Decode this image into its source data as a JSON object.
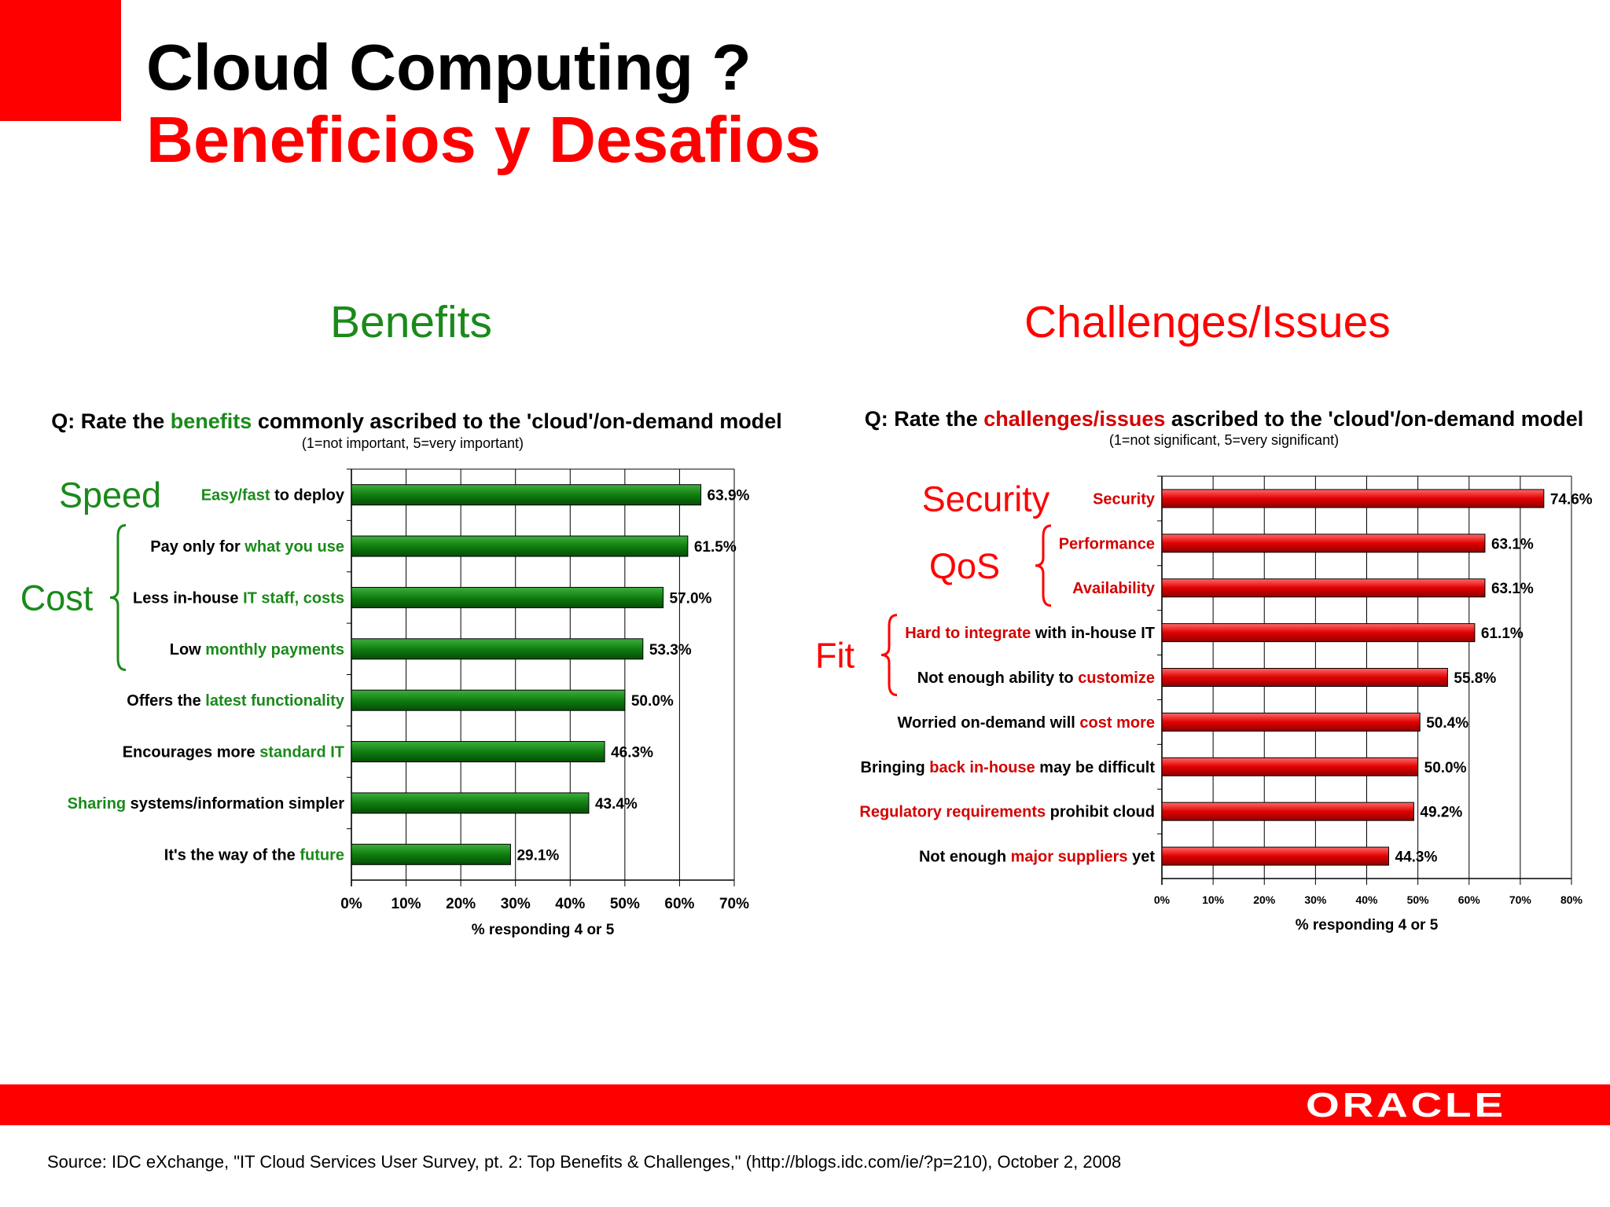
{
  "slide": {
    "title": "Cloud Computing ?",
    "subtitle": "Beneficios y Desafios",
    "benefits_heading": "Benefits",
    "challenges_heading": "Challenges/Issues",
    "source": "Source: IDC eXchange, \"IT Cloud Services User Survey, pt. 2: Top Benefits & Challenges,\" (http://blogs.idc.com/ie/?p=210), October 2, 2008",
    "logo_text": "ORACLE",
    "colors": {
      "accent": "#ff0000",
      "benefit_green": "#1a8a1a",
      "bar_green": "#0f7f0f",
      "bar_red": "#e00000"
    }
  },
  "chart_data": [
    {
      "type": "bar",
      "orientation": "horizontal",
      "question": [
        {
          "text": "Q: Rate the ",
          "hl": false
        },
        {
          "text": "benefits",
          "hl": true
        },
        {
          "text": " commonly ascribed to the 'cloud'/on-demand model",
          "hl": false
        }
      ],
      "scale_note": "(1=not important, 5=very important)",
      "xlabel": "% responding 4 or 5",
      "xlim": [
        0,
        70
      ],
      "ticks": [
        "0%",
        "10%",
        "20%",
        "30%",
        "40%",
        "50%",
        "60%",
        "70%"
      ],
      "categories": [
        [
          {
            "text": "Easy/fast",
            "hl": true
          },
          {
            "text": " to deploy",
            "hl": false
          }
        ],
        [
          {
            "text": "Pay only for ",
            "hl": false
          },
          {
            "text": "what you use",
            "hl": true
          }
        ],
        [
          {
            "text": "Less in-house ",
            "hl": false
          },
          {
            "text": "IT staff, costs",
            "hl": true
          }
        ],
        [
          {
            "text": "Low ",
            "hl": false
          },
          {
            "text": "monthly payments",
            "hl": true
          }
        ],
        [
          {
            "text": "Offers the ",
            "hl": false
          },
          {
            "text": "latest functionality",
            "hl": true
          }
        ],
        [
          {
            "text": "Encourages more ",
            "hl": false
          },
          {
            "text": "standard IT",
            "hl": true
          }
        ],
        [
          {
            "text": "Sharing",
            "hl": true
          },
          {
            "text": " systems/information simpler",
            "hl": false
          }
        ],
        [
          {
            "text": "It's the way of the ",
            "hl": false
          },
          {
            "text": "future",
            "hl": true
          }
        ]
      ],
      "values": [
        63.9,
        61.5,
        57.0,
        53.3,
        50.0,
        46.3,
        43.4,
        29.1
      ],
      "value_labels": [
        "63.9%",
        "61.5%",
        "57.0%",
        "53.3%",
        "50.0%",
        "46.3%",
        "43.4%",
        "29.1%"
      ],
      "groups": [
        {
          "label": "Speed",
          "rows": [
            0,
            0
          ],
          "brace": false
        },
        {
          "label": "Cost",
          "rows": [
            1,
            3
          ],
          "brace": true
        }
      ]
    },
    {
      "type": "bar",
      "orientation": "horizontal",
      "question": [
        {
          "text": "Q: Rate the ",
          "hl": false
        },
        {
          "text": "challenges/issues",
          "hl": true
        },
        {
          "text": " ascribed to the 'cloud'/on-demand model",
          "hl": false
        }
      ],
      "scale_note": "(1=not significant, 5=very significant)",
      "xlabel": "% responding 4 or 5",
      "xlim": [
        0,
        80
      ],
      "ticks": [
        "0%",
        "10%",
        "20%",
        "30%",
        "40%",
        "50%",
        "60%",
        "70%",
        "80%"
      ],
      "categories": [
        [
          {
            "text": "Security",
            "hl": true
          }
        ],
        [
          {
            "text": "Performance",
            "hl": true
          }
        ],
        [
          {
            "text": "Availability",
            "hl": true
          }
        ],
        [
          {
            "text": "Hard to integrate",
            "hl": true
          },
          {
            "text": " with in-house IT",
            "hl": false
          }
        ],
        [
          {
            "text": "Not enough ability to ",
            "hl": false
          },
          {
            "text": "customize",
            "hl": true
          }
        ],
        [
          {
            "text": "Worried on-demand will ",
            "hl": false
          },
          {
            "text": "cost more",
            "hl": true
          }
        ],
        [
          {
            "text": "Bringing ",
            "hl": false
          },
          {
            "text": "back in-house",
            "hl": true
          },
          {
            "text": " may be difficult",
            "hl": false
          }
        ],
        [
          {
            "text": "Regulatory requirements",
            "hl": true
          },
          {
            "text": " prohibit cloud",
            "hl": false
          }
        ],
        [
          {
            "text": "Not enough ",
            "hl": false
          },
          {
            "text": "major suppliers",
            "hl": true
          },
          {
            "text": " yet",
            "hl": false
          }
        ]
      ],
      "values": [
        74.6,
        63.1,
        63.1,
        61.1,
        55.8,
        50.4,
        50.0,
        49.2,
        44.3
      ],
      "value_labels": [
        "74.6%",
        "63.1%",
        "63.1%",
        "61.1%",
        "55.8%",
        "50.4%",
        "50.0%",
        "49.2%",
        "44.3%"
      ],
      "groups": [
        {
          "label": "Security",
          "rows": [
            0,
            0
          ],
          "brace": false
        },
        {
          "label": "QoS",
          "rows": [
            1,
            2
          ],
          "brace": true
        },
        {
          "label": "Fit",
          "rows": [
            3,
            4
          ],
          "brace": true
        }
      ]
    }
  ]
}
